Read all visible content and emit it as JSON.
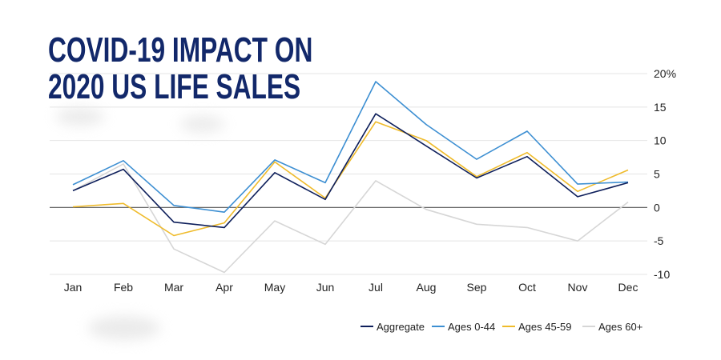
{
  "colors": {
    "title": "#12286a",
    "grid": "#e4e4e4",
    "zero": "#555555",
    "text": "#222222"
  },
  "chart_data": {
    "type": "line",
    "title_lines": [
      "COVID-19 IMPACT ON",
      "2020 US LIFE SALES"
    ],
    "categories": [
      "Jan",
      "Feb",
      "Mar",
      "Apr",
      "May",
      "Jun",
      "Jul",
      "Aug",
      "Sep",
      "Oct",
      "Nov",
      "Dec"
    ],
    "y_ticks": [
      20,
      15,
      10,
      5,
      0,
      -5,
      -10
    ],
    "y_tick_labels": [
      "20%",
      "15",
      "10",
      "5",
      "0",
      "-5",
      "-10"
    ],
    "ylim": [
      -10,
      20
    ],
    "grid": true,
    "legend_position": "bottom-right",
    "series": [
      {
        "name": "Ages 60+",
        "color": "#d6d6d6",
        "values": [
          2.5,
          6.5,
          -6.2,
          -9.7,
          -2.0,
          -5.5,
          4.0,
          -0.3,
          -2.5,
          -3.0,
          -5.0,
          0.8
        ]
      },
      {
        "name": "Ages 45-59",
        "color": "#efbb2b",
        "values": [
          0.1,
          0.6,
          -4.2,
          -2.3,
          6.8,
          1.4,
          12.8,
          10.0,
          4.6,
          8.2,
          2.4,
          5.6
        ]
      },
      {
        "name": "Ages 0-44",
        "color": "#3d8fd2",
        "values": [
          3.4,
          7.0,
          0.3,
          -0.7,
          7.1,
          3.7,
          18.8,
          12.4,
          7.2,
          11.4,
          3.5,
          3.8
        ]
      },
      {
        "name": "Aggregate",
        "color": "#0e1f5b",
        "values": [
          2.5,
          5.7,
          -2.2,
          -3.0,
          5.2,
          1.2,
          14.0,
          9.2,
          4.4,
          7.6,
          1.6,
          3.7
        ]
      }
    ],
    "legend_order": [
      "Aggregate",
      "Ages 0-44",
      "Ages 45-59",
      "Ages 60+"
    ]
  }
}
